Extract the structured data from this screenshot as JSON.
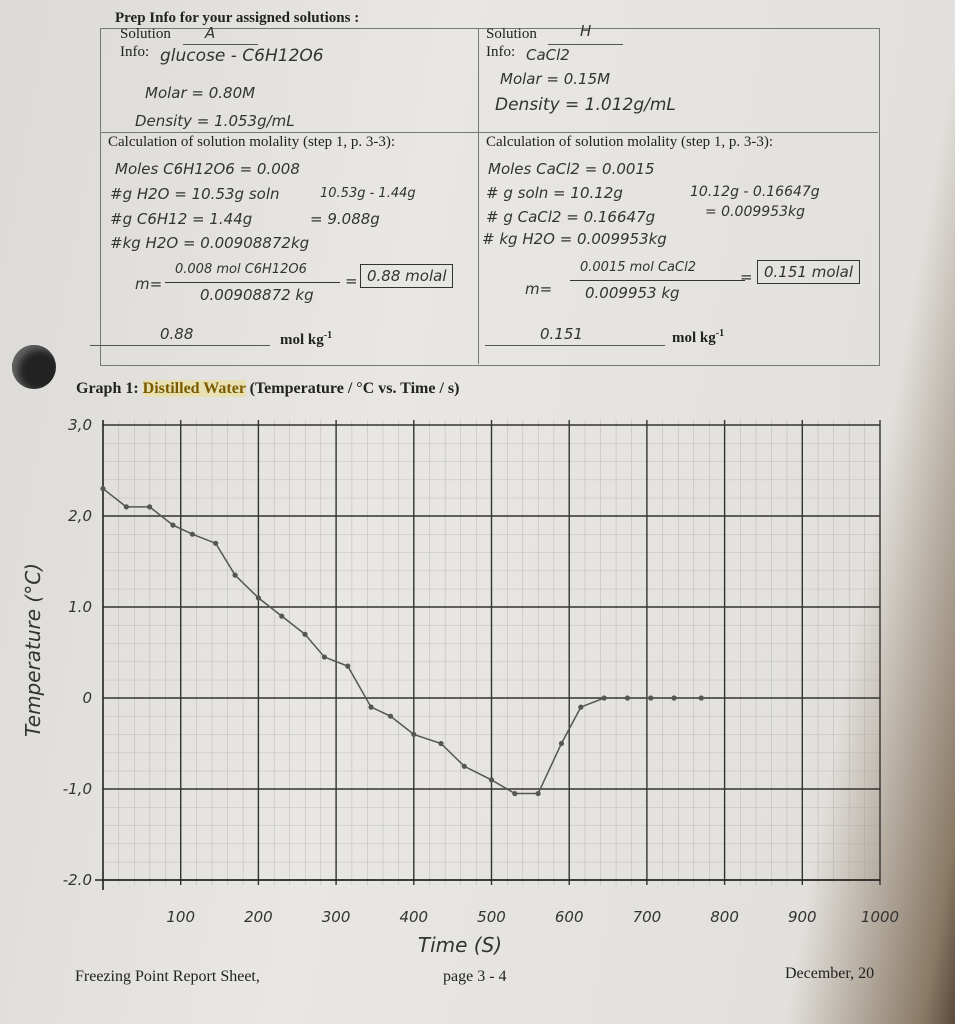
{
  "header": {
    "title": "Prep Info for your assigned solutions :"
  },
  "solutions": [
    {
      "solution_label": "Solution",
      "solution": "A",
      "info_label": "Info:",
      "info": [
        "glucose - C6H12O6",
        "Molar = 0.80M",
        "Density = 1.053g/mL"
      ],
      "calc_title": "Calculation of solution molality (step 1, p. 3-3):",
      "work": [
        "Moles C6H12O6 = 0.008",
        "#g H2O = 10.53g soln",
        "#g C6H12 = 1.44g",
        "#kg H2O = 0.00908872kg"
      ],
      "side": [
        "10.53g - 1.44g",
        "= 9.088g"
      ],
      "formula": {
        "lhs": "m=",
        "numerator": "0.008 mol C6H12O6",
        "denominator": "0.00908872 kg",
        "equals": "=",
        "result": "0.88 molal"
      },
      "answer": "0.88",
      "unit": "mol kg",
      "unit_exp": "-1"
    },
    {
      "solution_label": "Solution",
      "solution": "H",
      "info_label": "Info:",
      "info": [
        "CaCl2",
        "Molar = 0.15M",
        "Density = 1.012g/mL"
      ],
      "calc_title": "Calculation of solution molality (step 1, p. 3-3):",
      "work": [
        "Moles CaCl2 = 0.0015",
        "# g soln = 10.12g",
        "# g CaCl2 = 0.16647g",
        "# kg H2O = 0.009953kg"
      ],
      "side": [
        "10.12g - 0.16647g",
        "= 0.009953kg"
      ],
      "formula": {
        "lhs": "m=",
        "numerator": "0.0015 mol CaCl2",
        "denominator": "0.009953 kg",
        "equals": "=",
        "result": "0.151 molal"
      },
      "answer": "0.151",
      "unit": "mol kg",
      "unit_exp": "-1"
    }
  ],
  "graph_title": {
    "prefix": "Graph 1: ",
    "highlight": "Distilled Water",
    "suffix": " (Temperature / °C vs. Time / s)"
  },
  "footer": {
    "left": "Freezing Point Report Sheet,",
    "center": "page 3 - 4",
    "right": "December, 20"
  },
  "chart_data": {
    "type": "line",
    "x_label": "Time (S)",
    "y_label": "Temperature (°C)",
    "xlim": [
      0,
      1000
    ],
    "ylim": [
      -2,
      3
    ],
    "xticks": [
      100,
      200,
      300,
      400,
      500,
      600,
      700,
      800,
      900,
      1000
    ],
    "yticks": [
      {
        "value": 3,
        "label": "3,0"
      },
      {
        "value": 2,
        "label": "2,0"
      },
      {
        "value": 1,
        "label": "1.0"
      },
      0,
      {
        "value": -1,
        "label": "-1,0"
      },
      {
        "value": -2,
        "label": "-2.0"
      }
    ],
    "grid": true,
    "color": "#555555",
    "x": [
      0,
      30,
      60,
      90,
      115,
      145,
      170,
      200,
      230,
      260,
      285,
      315,
      345,
      370,
      400,
      435,
      465,
      500,
      530,
      560,
      590,
      615,
      645,
      675,
      705,
      735,
      770
    ],
    "values": [
      2.3,
      2.1,
      2.1,
      1.9,
      1.8,
      1.7,
      1.35,
      1.1,
      0.9,
      0.7,
      0.45,
      0.35,
      -0.1,
      -0.2,
      -0.4,
      -0.5,
      -0.75,
      -0.9,
      -1.05,
      -1.05,
      -0.5,
      -0.1,
      0,
      0,
      0,
      0,
      0
    ]
  }
}
